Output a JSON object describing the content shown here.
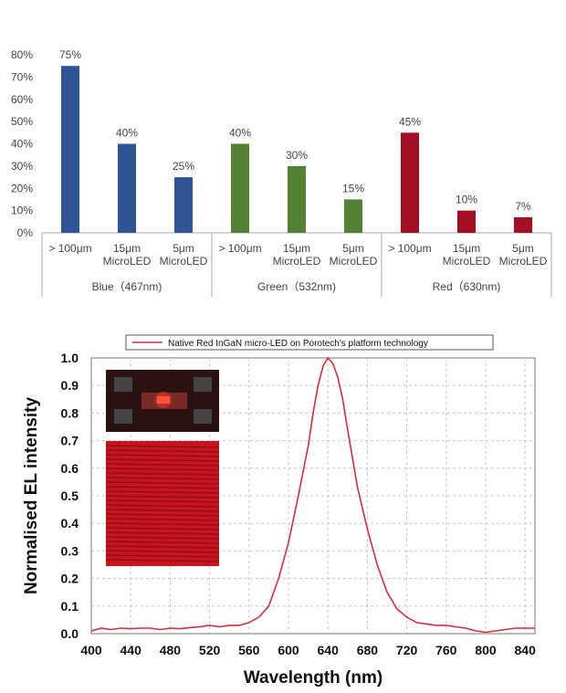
{
  "chart_data": [
    {
      "type": "bar",
      "title": "",
      "ylim": [
        0,
        80
      ],
      "yticks": [
        "0%",
        "10%",
        "20%",
        "30%",
        "40%",
        "50%",
        "60%",
        "70%",
        "80%"
      ],
      "groups": [
        {
          "name": "Blue（467nm)",
          "color": "#2f5597",
          "bars": [
            {
              "label_line1": "> 100μm",
              "label_line2": "",
              "value": 75,
              "value_label": "75%"
            },
            {
              "label_line1": "15μm",
              "label_line2": "MicroLED",
              "value": 40,
              "value_label": "40%"
            },
            {
              "label_line1": "5μm",
              "label_line2": "MicroLED",
              "value": 25,
              "value_label": "25%"
            }
          ]
        },
        {
          "name": "Green（532nm)",
          "color": "#548235",
          "bars": [
            {
              "label_line1": "> 100μm",
              "label_line2": "",
              "value": 40,
              "value_label": "40%"
            },
            {
              "label_line1": "15μm",
              "label_line2": "MicroLED",
              "value": 30,
              "value_label": "30%"
            },
            {
              "label_line1": "5μm",
              "label_line2": "MicroLED",
              "value": 15,
              "value_label": "15%"
            }
          ]
        },
        {
          "name": "Red（630nm)",
          "color": "#a50f23",
          "bars": [
            {
              "label_line1": "> 100μm",
              "label_line2": "",
              "value": 45,
              "value_label": "45%"
            },
            {
              "label_line1": "15μm",
              "label_line2": "MicroLED",
              "value": 10,
              "value_label": "10%"
            },
            {
              "label_line1": "5μm",
              "label_line2": "MicroLED",
              "value": 7,
              "value_label": "7%"
            }
          ]
        }
      ]
    },
    {
      "type": "line",
      "legend": "Native Red InGaN micro-LED on Porotech's platform technology",
      "xlabel": "Wavelength (nm)",
      "ylabel": "Normalised EL intensity",
      "xlim": [
        400,
        850
      ],
      "ylim": [
        0,
        1.0
      ],
      "xticks": [
        400,
        440,
        480,
        520,
        560,
        600,
        640,
        680,
        720,
        760,
        800,
        840
      ],
      "yticks": [
        "0.0",
        "0.1",
        "0.2",
        "0.3",
        "0.4",
        "0.5",
        "0.6",
        "0.7",
        "0.8",
        "0.9",
        "1.0"
      ],
      "line_color": "#d32f3a",
      "series": [
        {
          "name": "Native Red InGaN micro-LED on Porotech's platform technology",
          "x": [
            400,
            410,
            420,
            430,
            440,
            450,
            460,
            470,
            480,
            490,
            500,
            510,
            520,
            530,
            540,
            550,
            560,
            570,
            580,
            590,
            600,
            610,
            620,
            625,
            630,
            635,
            640,
            645,
            650,
            655,
            660,
            670,
            680,
            690,
            700,
            710,
            720,
            730,
            740,
            750,
            760,
            770,
            780,
            790,
            800,
            810,
            820,
            830,
            840,
            850
          ],
          "y": [
            0.01,
            0.02,
            0.015,
            0.02,
            0.018,
            0.02,
            0.02,
            0.015,
            0.02,
            0.018,
            0.022,
            0.025,
            0.03,
            0.025,
            0.03,
            0.03,
            0.04,
            0.06,
            0.1,
            0.2,
            0.33,
            0.5,
            0.68,
            0.8,
            0.9,
            0.97,
            1.0,
            0.98,
            0.93,
            0.85,
            0.74,
            0.53,
            0.38,
            0.25,
            0.15,
            0.09,
            0.06,
            0.04,
            0.035,
            0.03,
            0.03,
            0.025,
            0.02,
            0.01,
            0.005,
            0.01,
            0.015,
            0.02,
            0.02,
            0.02
          ]
        }
      ]
    }
  ]
}
